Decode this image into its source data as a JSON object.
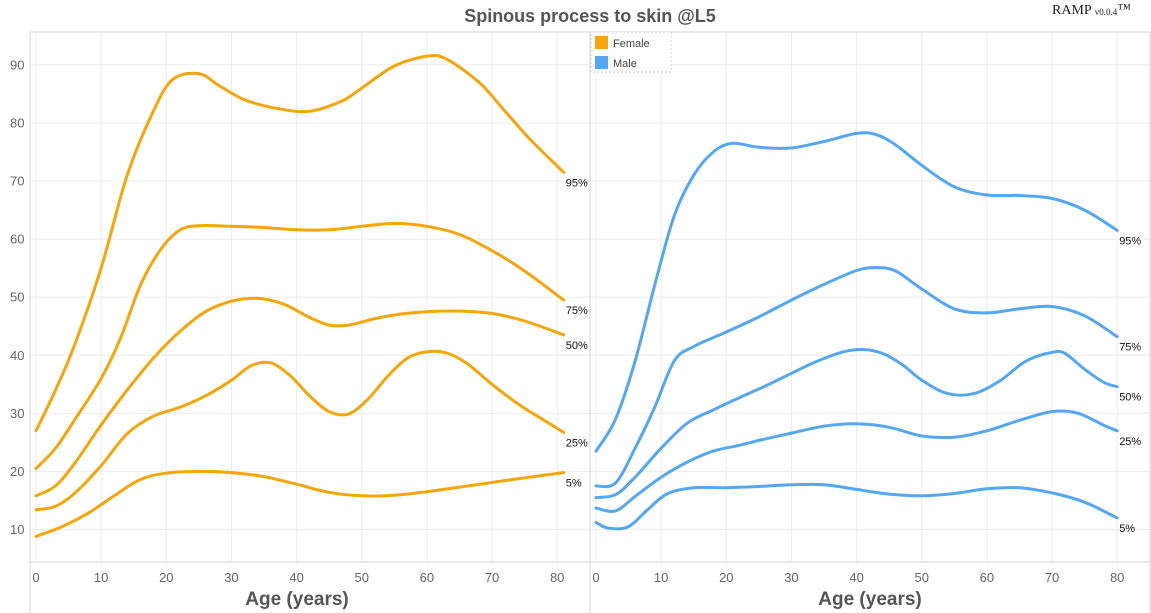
{
  "title": "Spinous process to skin @L5",
  "brand": {
    "name": "RAMP",
    "version": "v0.0.4",
    "tm": "™"
  },
  "legend": [
    {
      "label": "Female",
      "color": "#f5a60a"
    },
    {
      "label": "Male",
      "color": "#55a7f2"
    }
  ],
  "chart_data": [
    {
      "type": "line",
      "panel": "female",
      "xlabel": "Age (years)",
      "ylabel": "",
      "xlim": [
        0,
        85
      ],
      "ylim": [
        4,
        96
      ],
      "xticks": [
        0,
        10,
        20,
        30,
        40,
        50,
        60,
        70,
        80
      ],
      "yticks": [
        10,
        20,
        30,
        40,
        50,
        60,
        70,
        80,
        90
      ],
      "grid": true,
      "color": "#f5a60a",
      "series": [
        {
          "name": "95%",
          "x": [
            0,
            3,
            6,
            10,
            14,
            18,
            21,
            25,
            28,
            32,
            37,
            42,
            47,
            50,
            55,
            60,
            63,
            68,
            72,
            76,
            81
          ],
          "y": [
            27,
            34,
            42,
            55,
            71,
            82,
            87.5,
            88.5,
            86.5,
            84,
            82.5,
            82,
            83.8,
            86,
            89.8,
            91.5,
            91,
            87,
            82,
            77,
            71.5
          ]
        },
        {
          "name": "75%",
          "x": [
            0,
            3,
            6,
            10,
            13,
            16,
            19,
            22,
            25,
            30,
            35,
            40,
            45,
            50,
            55,
            60,
            65,
            70,
            75,
            81
          ],
          "y": [
            20.5,
            24,
            29,
            36,
            43,
            52,
            58,
            61.5,
            62.3,
            62.2,
            62,
            61.6,
            61.6,
            62.2,
            62.7,
            62.2,
            60.8,
            58,
            54.5,
            49.5
          ]
        },
        {
          "name": "50%",
          "x": [
            0,
            3,
            6,
            10,
            14,
            18,
            22,
            26,
            30,
            34,
            38,
            42,
            45,
            48,
            52,
            56,
            60,
            65,
            70,
            75,
            81
          ],
          "y": [
            15.8,
            17.5,
            21.5,
            28,
            34,
            39.5,
            44,
            47.5,
            49.3,
            49.8,
            48.8,
            46.5,
            45.2,
            45.2,
            46.3,
            47.1,
            47.5,
            47.6,
            47.2,
            45.9,
            43.5
          ]
        },
        {
          "name": "25%",
          "x": [
            0,
            3,
            6,
            10,
            14,
            18,
            22,
            26,
            30,
            33,
            36,
            39,
            42,
            45,
            48,
            51,
            54,
            57,
            60,
            63,
            66,
            70,
            74,
            78,
            81
          ],
          "y": [
            13.4,
            14,
            16.3,
            21,
            26.5,
            29.5,
            31,
            33,
            35.7,
            38.2,
            38.7,
            36.5,
            33,
            30.3,
            29.9,
            32.5,
            36.4,
            39.5,
            40.6,
            40.4,
            38.7,
            35,
            31.6,
            28.8,
            26.7
          ]
        },
        {
          "name": "5%",
          "x": [
            0,
            4,
            8,
            12,
            16,
            20,
            25,
            30,
            35,
            40,
            45,
            50,
            55,
            60,
            65,
            70,
            75,
            81
          ],
          "y": [
            8.8,
            10.5,
            12.8,
            15.8,
            18.6,
            19.7,
            20,
            19.8,
            19.1,
            17.8,
            16.4,
            15.8,
            15.9,
            16.5,
            17.3,
            18.1,
            18.9,
            19.8
          ]
        }
      ]
    },
    {
      "type": "line",
      "panel": "male",
      "xlabel": "Age (years)",
      "ylabel": "",
      "xlim": [
        0,
        85
      ],
      "ylim": [
        4,
        96
      ],
      "xticks": [
        0,
        10,
        20,
        30,
        40,
        50,
        60,
        70,
        80
      ],
      "grid": true,
      "color": "#55a7f2",
      "series": [
        {
          "name": "95%",
          "x": [
            0,
            3,
            6,
            9,
            12,
            15,
            18,
            21,
            25,
            30,
            35,
            40,
            43,
            46,
            50,
            55,
            60,
            65,
            70,
            75,
            80
          ],
          "y": [
            23.5,
            29,
            39,
            52,
            64,
            71,
            75,
            76.5,
            75.8,
            75.7,
            76.8,
            78.2,
            78,
            76.2,
            72.7,
            69,
            67.6,
            67.5,
            67,
            65,
            61.5
          ]
        },
        {
          "name": "75%",
          "x": [
            0,
            3,
            6,
            9,
            12,
            15,
            20,
            25,
            30,
            35,
            40,
            43,
            46,
            50,
            55,
            60,
            65,
            70,
            75,
            80
          ],
          "y": [
            17.5,
            18,
            24,
            31,
            39,
            41.5,
            44,
            46.6,
            49.5,
            52.2,
            54.6,
            55.1,
            54.5,
            51.4,
            48,
            47.3,
            48,
            48.4,
            46.8,
            43.2
          ]
        },
        {
          "name": "50%",
          "x": [
            0,
            3,
            6,
            10,
            14,
            18,
            22,
            26,
            30,
            34,
            38,
            41,
            44,
            47,
            50,
            54,
            58,
            62,
            66,
            70,
            72,
            75,
            78,
            80
          ],
          "y": [
            15.5,
            16,
            19,
            24,
            28.3,
            30.6,
            32.7,
            34.7,
            36.9,
            39,
            40.6,
            41,
            40.3,
            38.4,
            35.7,
            33.4,
            33.4,
            35.6,
            39,
            40.5,
            40.3,
            37.6,
            35.3,
            34.6
          ]
        },
        {
          "name": "25%",
          "x": [
            0,
            3,
            6,
            10,
            14,
            18,
            22,
            26,
            30,
            35,
            40,
            45,
            50,
            55,
            60,
            65,
            70,
            74,
            78,
            80
          ],
          "y": [
            13.7,
            13.2,
            15.7,
            19,
            21.6,
            23.5,
            24.5,
            25.6,
            26.6,
            27.8,
            28.2,
            27.6,
            26.1,
            25.9,
            27,
            28.8,
            30.3,
            30,
            27.9,
            27
          ]
        },
        {
          "name": "5%",
          "x": [
            0,
            2,
            5,
            8,
            11,
            15,
            20,
            25,
            30,
            35,
            40,
            45,
            50,
            55,
            60,
            65,
            70,
            75,
            80
          ],
          "y": [
            11.2,
            10.2,
            10.5,
            13.5,
            16.2,
            17.2,
            17.2,
            17.4,
            17.7,
            17.7,
            16.9,
            16.1,
            15.8,
            16.2,
            17,
            17.2,
            16.3,
            14.7,
            12
          ]
        }
      ]
    }
  ]
}
